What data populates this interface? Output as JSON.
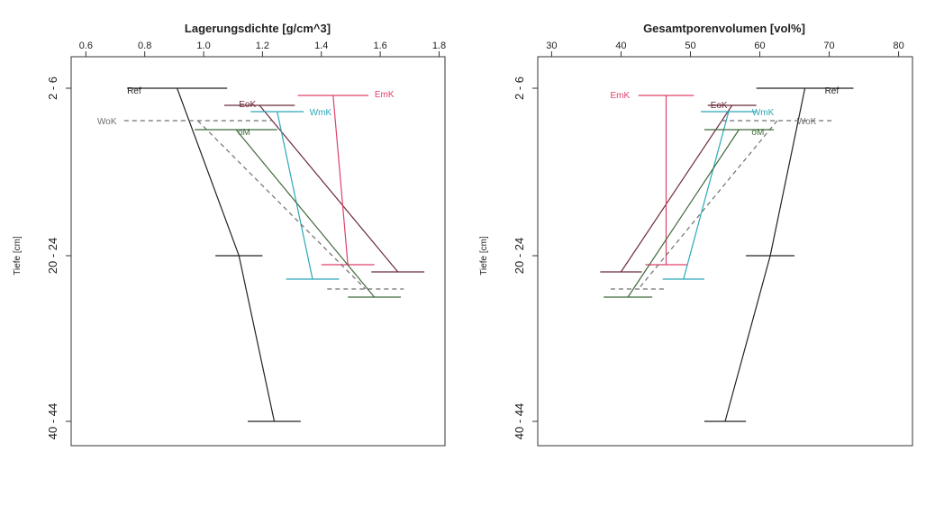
{
  "chart_data": [
    {
      "type": "line",
      "title": "Lagerungsdichte [g/cm^3]",
      "ylabel": "Tiefe [cm]",
      "xlim": [
        0.55,
        1.82
      ],
      "x_ticks": [
        0.6,
        0.8,
        1.0,
        1.2,
        1.4,
        1.6,
        1.8
      ],
      "x_tick_labels": [
        "0.6",
        "0.8",
        "1.0",
        "1.2",
        "1.4",
        "1.6",
        "1.8"
      ],
      "y_categories": [
        "2 - 6",
        "20 - 24",
        "40 - 44"
      ],
      "grid": false,
      "series": [
        {
          "name": "Ref",
          "color": "#222222",
          "dash": false,
          "x": [
            0.91,
            1.12,
            1.24
          ],
          "y": [
            "2 - 6",
            "20 - 24",
            "40 - 44"
          ],
          "err": [
            0.17,
            0.08,
            0.09
          ]
        },
        {
          "name": "EoK",
          "color": "#6b2a3a",
          "dash": false,
          "x": [
            1.19,
            1.66
          ],
          "y": [
            "2 - 6",
            "20 - 24"
          ],
          "err": [
            0.12,
            0.09
          ]
        },
        {
          "name": "EmK",
          "color": "#e0406a",
          "dash": false,
          "x": [
            1.44,
            1.49
          ],
          "y": [
            "2 - 6",
            "20 - 24"
          ],
          "err": [
            0.12,
            0.09
          ]
        },
        {
          "name": "WmK",
          "color": "#2aa7b8",
          "dash": false,
          "x": [
            1.25,
            1.37
          ],
          "y": [
            "2 - 6",
            "20 - 24"
          ],
          "err": [
            0.09,
            0.09
          ]
        },
        {
          "name": "WoK",
          "color": "#6f6f6f",
          "dash": true,
          "x": [
            0.98,
            1.55
          ],
          "y": [
            "2 - 6",
            "20 - 24"
          ],
          "err": [
            0.25,
            0.13
          ]
        },
        {
          "name": "oM",
          "color": "#3f6b3a",
          "dash": false,
          "x": [
            1.11,
            1.58
          ],
          "y": [
            "2 - 6",
            "20 - 24"
          ],
          "err": [
            0.14,
            0.09
          ]
        }
      ]
    },
    {
      "type": "line",
      "title": "Gesamtporenvolumen [vol%]",
      "ylabel": "Tiefe [cm]",
      "xlim": [
        28,
        82
      ],
      "x_ticks": [
        30,
        40,
        50,
        60,
        70,
        80
      ],
      "x_tick_labels": [
        "30",
        "40",
        "50",
        "60",
        "70",
        "80"
      ],
      "y_categories": [
        "2 - 6",
        "20 - 24",
        "40 - 44"
      ],
      "grid": false,
      "series": [
        {
          "name": "Ref",
          "color": "#222222",
          "dash": false,
          "x": [
            66.5,
            61.5,
            55
          ],
          "y": [
            "2 - 6",
            "20 - 24",
            "40 - 44"
          ],
          "err": [
            7,
            3.5,
            3
          ]
        },
        {
          "name": "EoK",
          "color": "#6b2a3a",
          "dash": false,
          "x": [
            56,
            40
          ],
          "y": [
            "2 - 6",
            "20 - 24"
          ],
          "err": [
            3.5,
            3
          ]
        },
        {
          "name": "EmK",
          "color": "#e0406a",
          "dash": false,
          "x": [
            46.5,
            46.5
          ],
          "y": [
            "2 - 6",
            "20 - 24"
          ],
          "err": [
            4,
            3
          ]
        },
        {
          "name": "WmK",
          "color": "#2aa7b8",
          "dash": false,
          "x": [
            55.5,
            49
          ],
          "y": [
            "2 - 6",
            "20 - 24"
          ],
          "err": [
            4,
            3
          ]
        },
        {
          "name": "WoK",
          "color": "#6f6f6f",
          "dash": true,
          "x": [
            62.5,
            42.5
          ],
          "y": [
            "2 - 6",
            "20 - 24"
          ],
          "err": [
            8,
            4
          ]
        },
        {
          "name": "oM",
          "color": "#3f6b3a",
          "dash": false,
          "x": [
            57,
            41
          ],
          "y": [
            "2 - 6",
            "20 - 24"
          ],
          "err": [
            5,
            3.5
          ]
        }
      ]
    }
  ]
}
